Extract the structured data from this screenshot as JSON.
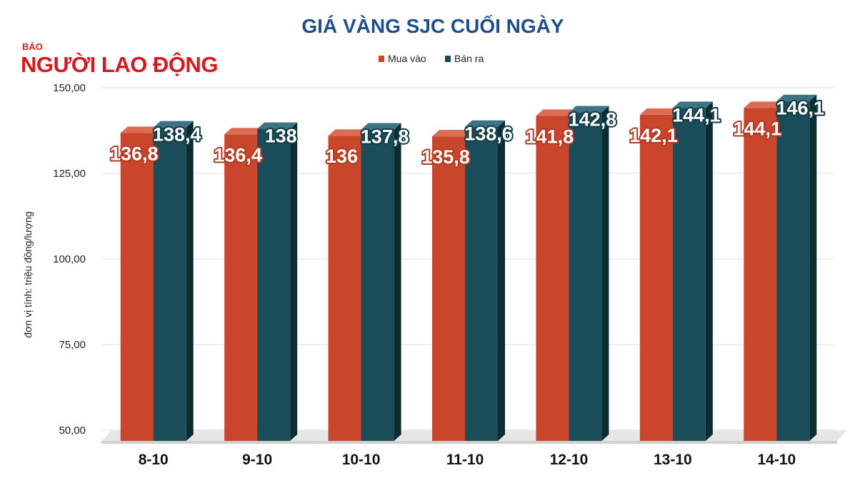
{
  "logo": {
    "small": "BÁO",
    "big": "NGƯỜI LAO ĐỘNG"
  },
  "colors": {
    "buy": "#c9462a",
    "sell": "#1a4d5a",
    "title": "#1f4e8c",
    "logo": "#d71920"
  },
  "chart_data": {
    "type": "bar",
    "title": "GIÁ VÀNG SJC CUỐI NGÀY",
    "ylabel": "đơn vị tính: triệu đồng/lượng",
    "xlabel": "",
    "ylim": [
      50,
      150
    ],
    "yticks": [
      "150,00",
      "125,00",
      "100,00",
      "75,00",
      "50,00"
    ],
    "categories": [
      "8-10",
      "9-10",
      "10-10",
      "11-10",
      "12-10",
      "13-10",
      "14-10"
    ],
    "legend_position": "top-center",
    "grid": true,
    "series": [
      {
        "name": "Mua vào",
        "values": [
          136.8,
          136.4,
          136,
          135.8,
          141.8,
          142.1,
          144.1
        ],
        "labels": [
          "136,8",
          "136,4",
          "136",
          "135,8",
          "141,8",
          "142,1",
          "144,1"
        ]
      },
      {
        "name": "Bán ra",
        "values": [
          138.4,
          138,
          137.8,
          138.6,
          142.8,
          144.1,
          146.1
        ],
        "labels": [
          "138,4",
          "138",
          "137,8",
          "138,6",
          "142,8",
          "144,1",
          "146,1"
        ]
      }
    ]
  }
}
